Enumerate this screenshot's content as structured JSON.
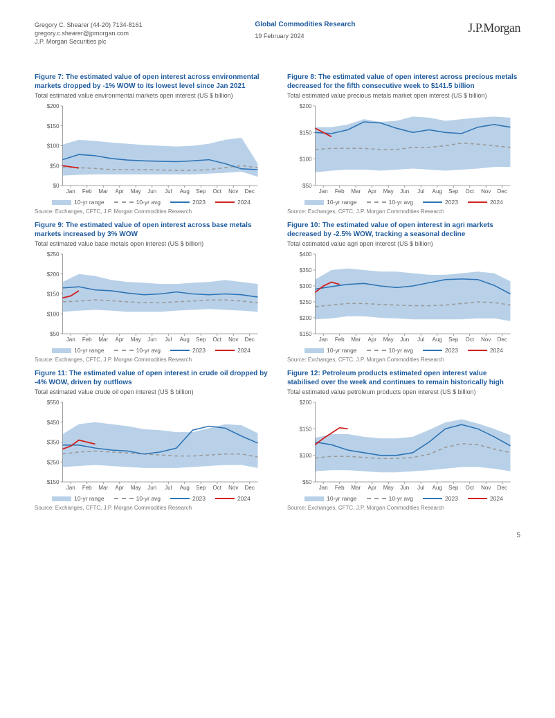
{
  "header": {
    "author": "Gregory C. Shearer  (44-20) 7134-8161",
    "email": "gregory.c.shearer@jpmorgan.com",
    "org": "J.P. Morgan Securities plc",
    "center_title": "Global Commodities Research",
    "date": "19 February 2024",
    "brand": "J.P.Morgan"
  },
  "legend": {
    "range": "10-yr range",
    "avg": "10-yr avg",
    "y2023": "2023",
    "y2024": "2024"
  },
  "months": [
    "Jan",
    "Feb",
    "Mar",
    "Apr",
    "May",
    "Jun",
    "Jul",
    "Aug",
    "Sep",
    "Oct",
    "Nov",
    "Dec"
  ],
  "common": {
    "range_color": "#b9d1e8",
    "avg_color": "#9a9a9a",
    "y2023_color": "#2e74b5",
    "y2024_color": "#d02020",
    "axis_color": "#888888",
    "tick_font": 8,
    "source": "Source: Exchanges, CFTC, J.P. Morgan Commodities Research"
  },
  "figures": [
    {
      "id": "fig7",
      "num": "Figure 7:",
      "title": "The estimated value of open interest across environmental markets dropped by -1% WOW to its lowest level since Jan 2021",
      "subtitle": "Total estimated value environmental markets open interest (US $ billion)",
      "ymin": 0,
      "ymax": 200,
      "ystep": 50,
      "yprefix": "$",
      "range_hi": [
        103,
        115,
        112,
        108,
        105,
        102,
        100,
        98,
        100,
        105,
        115,
        120,
        55
      ],
      "range_lo": [
        25,
        27,
        28,
        28,
        28,
        28,
        28,
        28,
        28,
        30,
        32,
        35,
        22
      ],
      "avg": [
        47,
        45,
        43,
        40,
        40,
        40,
        39,
        38,
        38,
        40,
        45,
        50,
        45
      ],
      "y2023": [
        65,
        78,
        75,
        68,
        64,
        62,
        61,
        60,
        62,
        65,
        55,
        42,
        40
      ],
      "y2024": [
        50,
        47,
        44
      ]
    },
    {
      "id": "fig8",
      "num": "Figure 8:",
      "title": "The estimated value of open interest across precious metals decreased for the fifth consecutive week to $141.5 billion",
      "subtitle": "Total estimated value precious metals market open interest (US $ billion)",
      "ymin": 50,
      "ymax": 200,
      "ystep": 50,
      "yprefix": "$",
      "range_hi": [
        160,
        160,
        165,
        175,
        170,
        172,
        180,
        178,
        172,
        175,
        178,
        180,
        178
      ],
      "range_lo": [
        75,
        78,
        80,
        80,
        78,
        80,
        82,
        80,
        78,
        80,
        82,
        85,
        85
      ],
      "avg": [
        118,
        120,
        120,
        120,
        118,
        118,
        122,
        122,
        125,
        130,
        128,
        125,
        122
      ],
      "y2023": [
        150,
        148,
        155,
        170,
        168,
        158,
        150,
        155,
        150,
        148,
        160,
        165,
        160
      ],
      "y2024": [
        158,
        150,
        142
      ]
    },
    {
      "id": "fig9",
      "num": "Figure 9:",
      "title": "The estimated value of open interest across base metals markets increased by 3% WOW",
      "subtitle": "Total estimated value base metals open interest (US $ billion)",
      "ymin": 50,
      "ymax": 250,
      "ystep": 50,
      "yprefix": "$",
      "range_hi": [
        180,
        200,
        195,
        185,
        180,
        178,
        175,
        175,
        178,
        180,
        185,
        180,
        175
      ],
      "range_lo": [
        105,
        108,
        110,
        108,
        105,
        105,
        105,
        108,
        110,
        112,
        110,
        108,
        105
      ],
      "avg": [
        130,
        132,
        135,
        133,
        130,
        128,
        128,
        130,
        132,
        135,
        135,
        132,
        128
      ],
      "y2023": [
        165,
        168,
        160,
        158,
        152,
        148,
        150,
        155,
        150,
        148,
        150,
        148,
        142
      ],
      "y2024": [
        140,
        145,
        158
      ]
    },
    {
      "id": "fig10",
      "num": "Figure 10:",
      "title": "The estimated value of open interest in agri markets decreased by -2.5% WOW, tracking a seasonal decline",
      "subtitle": "Total estimated value agri open interest (US $ billion)",
      "ymin": 150,
      "ymax": 400,
      "ystep": 50,
      "yprefix": "$",
      "range_hi": [
        320,
        350,
        355,
        350,
        345,
        345,
        340,
        335,
        335,
        340,
        345,
        340,
        315
      ],
      "range_lo": [
        195,
        198,
        205,
        205,
        200,
        198,
        195,
        195,
        195,
        195,
        198,
        198,
        190
      ],
      "avg": [
        235,
        240,
        245,
        245,
        242,
        240,
        238,
        238,
        240,
        245,
        250,
        248,
        240
      ],
      "y2023": [
        290,
        298,
        305,
        308,
        300,
        295,
        300,
        310,
        320,
        322,
        320,
        302,
        275
      ],
      "y2024": [
        280,
        300,
        312,
        305
      ]
    },
    {
      "id": "fig11",
      "num": "Figure 11:",
      "title": "The estimated value of open interest in crude oil dropped by -4% WOW, driven by outflows",
      "subtitle": "Total estimated value crude oil open interest (US $ billion)",
      "ymin": 150,
      "ymax": 550,
      "ystep": 100,
      "yprefix": "$",
      "range_hi": [
        390,
        440,
        450,
        440,
        430,
        415,
        410,
        400,
        400,
        420,
        440,
        435,
        395
      ],
      "range_lo": [
        225,
        230,
        235,
        230,
        225,
        220,
        220,
        220,
        225,
        230,
        235,
        235,
        220
      ],
      "avg": [
        290,
        300,
        305,
        300,
        295,
        290,
        285,
        280,
        280,
        285,
        290,
        290,
        275
      ],
      "y2023": [
        335,
        335,
        320,
        310,
        305,
        290,
        300,
        320,
        410,
        430,
        420,
        380,
        345
      ],
      "y2024": [
        315,
        330,
        360,
        350,
        340
      ]
    },
    {
      "id": "fig12",
      "num": "Figure 12:",
      "title": "Petroleum products estimated open interest value stabilised over the week and continues to remain historically high",
      "subtitle": "Total estimated value petroleum products open interest (US $ billion)",
      "ymin": 50,
      "ymax": 200,
      "ystep": 50,
      "yprefix": "$",
      "range_hi": [
        133,
        140,
        140,
        135,
        132,
        132,
        135,
        148,
        162,
        168,
        160,
        150,
        138
      ],
      "range_lo": [
        70,
        72,
        72,
        70,
        68,
        68,
        70,
        72,
        75,
        78,
        78,
        75,
        70
      ],
      "avg": [
        95,
        98,
        98,
        96,
        94,
        94,
        96,
        102,
        115,
        122,
        120,
        112,
        105
      ],
      "y2023": [
        125,
        120,
        110,
        105,
        100,
        100,
        105,
        125,
        150,
        158,
        150,
        135,
        118
      ],
      "y2024": [
        120,
        132,
        142,
        152,
        150
      ]
    }
  ],
  "page_number": "5"
}
